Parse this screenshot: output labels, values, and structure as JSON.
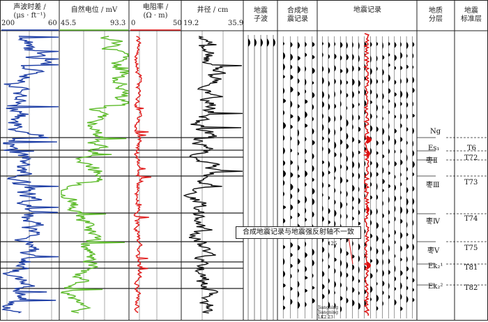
{
  "columns": {
    "sonic": {
      "title_line1": "声波时差 /",
      "title_line2": "(μs · ft⁻¹)",
      "min": "200",
      "max": "60",
      "color": "#1f3fa6"
    },
    "sp": {
      "title_line1": "自然电位 / mV",
      "min": "45.5",
      "max": "93.3",
      "color": "#5dbb2a"
    },
    "res": {
      "title_line1": "电阻率 /",
      "title_line2": "(Ω · m)",
      "min": "0",
      "max": "50",
      "color": "#e11d1d"
    },
    "cal": {
      "title_line1": "井径 / cm",
      "min": "19.2",
      "max": "35.9",
      "color": "#111111"
    },
    "wavelet": {
      "title_line1": "地震",
      "title_line2": "子波"
    },
    "synth": {
      "title_line1": "合成地",
      "title_line2": "震记录"
    },
    "seismic": {
      "title_line1": "地震记录"
    },
    "layer": {
      "title_line1": "地质",
      "title_line2": "分层"
    },
    "standard": {
      "title_line1": "地震",
      "title_line2": "标准层"
    }
  },
  "strata": [
    "Ng",
    "Es₁",
    "枣Ⅱ",
    "枣Ⅲ",
    "枣Ⅳ",
    "枣Ⅴ",
    "Ek₂¹",
    "Ek₂²"
  ],
  "standard_layers": [
    "T6",
    "T72",
    "T73",
    "T74",
    "T75",
    "T81",
    "T82"
  ],
  "annotation": "合成地震记录与地震强反射轴不一致",
  "ann_small": "125",
  "bottom_text": [
    "Jiangning",
    "Jiangning",
    "LK2.23"
  ]
}
